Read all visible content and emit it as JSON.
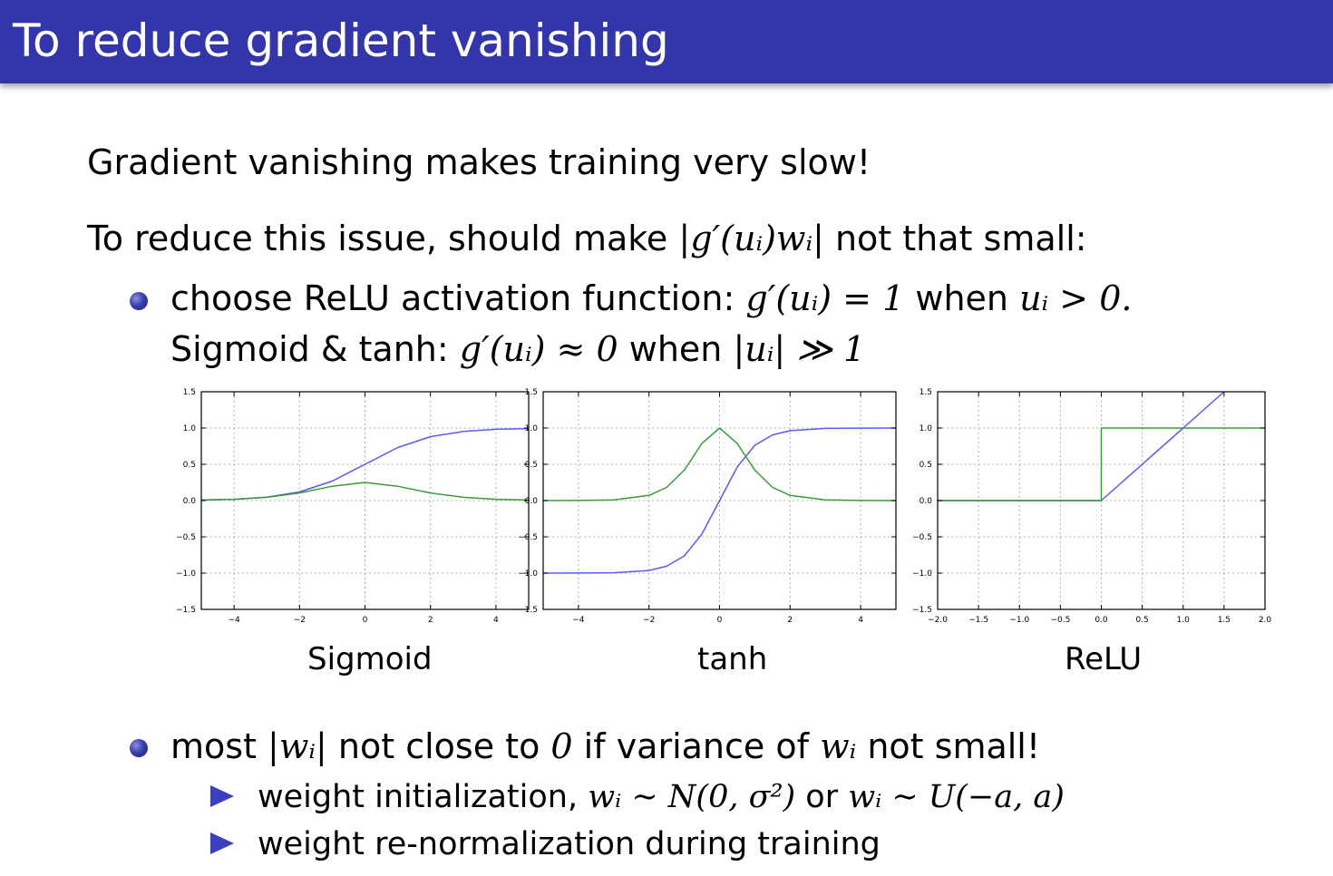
{
  "slide": {
    "title": "To reduce gradient vanishing",
    "line1": "Gradient vanishing makes training very slow!",
    "line2": {
      "prefix": "To reduce this issue, should make ",
      "math": "|g′(uᵢ)wᵢ|",
      "suffix": " not that small:"
    },
    "bullet1": {
      "part1": "choose ReLU activation function: ",
      "math1": "g′(uᵢ) = 1",
      "part2": " when ",
      "math2": "uᵢ > 0.",
      "line2_part1": "Sigmoid & tanh: ",
      "line2_math1": "g′(uᵢ) ≈ 0",
      "line2_part2": " when ",
      "line2_math2": "|uᵢ| ≫ 1"
    },
    "bullet2": {
      "part1": "most ",
      "math1": "|wᵢ|",
      "part2": " not close to ",
      "math2": "0",
      "part3": " if variance of ",
      "math3": "wᵢ",
      "part4": " not small!"
    },
    "sub1": {
      "part1": "weight initialization, ",
      "math1": "wᵢ ∼ N(0, σ²)",
      "part2": " or ",
      "math2": "wᵢ ∼ U(−a, a)"
    },
    "sub2": "weight re-normalization during training",
    "plot_labels": [
      "Sigmoid",
      "tanh",
      "ReLU"
    ]
  },
  "colors": {
    "accent": "#3236aa",
    "blue_series": "#5a5aff",
    "green_series": "#3c9a3c"
  },
  "chart_data": [
    {
      "type": "line",
      "title": "Sigmoid",
      "xlim": [
        -5,
        5
      ],
      "ylim": [
        -1.5,
        1.5
      ],
      "xticks": [
        -4,
        -2,
        0,
        2,
        4
      ],
      "xtick_labels": [
        "−4",
        "−2",
        "0",
        "2",
        "4"
      ],
      "yticks": [
        1.5,
        1.0,
        0.5,
        0.0,
        -0.5,
        -1.0,
        -1.5
      ],
      "ytick_labels": [
        "1.5",
        "1.0",
        "0.5",
        "0.0",
        "−0.5",
        "−1.0",
        "−1.5"
      ],
      "grid": true,
      "series": [
        {
          "color": "blue",
          "x": [
            -5,
            -4,
            -3,
            -2,
            -1,
            0,
            1,
            2,
            3,
            4,
            5
          ],
          "y": [
            0.007,
            0.018,
            0.047,
            0.119,
            0.269,
            0.5,
            0.731,
            0.881,
            0.953,
            0.982,
            0.993
          ]
        },
        {
          "color": "green",
          "x": [
            -5,
            -4,
            -3,
            -2,
            -1,
            0,
            1,
            2,
            3,
            4,
            5
          ],
          "y": [
            0.007,
            0.018,
            0.045,
            0.105,
            0.197,
            0.25,
            0.197,
            0.105,
            0.045,
            0.018,
            0.007
          ]
        }
      ]
    },
    {
      "type": "line",
      "title": "tanh",
      "xlim": [
        -5,
        5
      ],
      "ylim": [
        -1.5,
        1.5
      ],
      "xticks": [
        -4,
        -2,
        0,
        2,
        4
      ],
      "xtick_labels": [
        "−4",
        "−2",
        "0",
        "2",
        "4"
      ],
      "yticks": [
        1.5,
        1.0,
        0.5,
        0.0,
        -0.5,
        -1.0,
        -1.5
      ],
      "ytick_labels": [
        "1.5",
        "1.0",
        "0.5",
        "0.0",
        "−0.5",
        "−1.0",
        "−1.5"
      ],
      "grid": true,
      "series": [
        {
          "color": "blue",
          "x": [
            -5,
            -4,
            -3,
            -2,
            -1.5,
            -1,
            -0.5,
            0,
            0.5,
            1,
            1.5,
            2,
            3,
            4,
            5
          ],
          "y": [
            -1.0,
            -0.999,
            -0.995,
            -0.964,
            -0.905,
            -0.762,
            -0.462,
            0,
            0.462,
            0.762,
            0.905,
            0.964,
            0.995,
            0.999,
            1.0
          ]
        },
        {
          "color": "green",
          "x": [
            -5,
            -4,
            -3,
            -2,
            -1.5,
            -1,
            -0.5,
            0,
            0.5,
            1,
            1.5,
            2,
            3,
            4,
            5
          ],
          "y": [
            0.0,
            0.001,
            0.01,
            0.071,
            0.181,
            0.42,
            0.786,
            1.0,
            0.786,
            0.42,
            0.181,
            0.071,
            0.01,
            0.001,
            0.0
          ]
        }
      ]
    },
    {
      "type": "line",
      "title": "ReLU",
      "xlim": [
        -2.0,
        2.0
      ],
      "ylim": [
        -1.5,
        1.5
      ],
      "xticks": [
        -2.0,
        -1.5,
        -1.0,
        -0.5,
        0.0,
        0.5,
        1.0,
        1.5,
        2.0
      ],
      "xtick_labels": [
        "−2.0",
        "−1.5",
        "−1.0",
        "−0.5",
        "0.0",
        "0.5",
        "1.0",
        "1.5",
        "2.0"
      ],
      "yticks": [
        1.5,
        1.0,
        0.5,
        0.0,
        -0.5,
        -1.0,
        -1.5
      ],
      "ytick_labels": [
        "1.5",
        "1.0",
        "0.5",
        "0.0",
        "−0.5",
        "−1.0",
        "−1.5"
      ],
      "grid": true,
      "series": [
        {
          "color": "blue",
          "x": [
            -2.0,
            0.0,
            1.5
          ],
          "y": [
            0.0,
            0.0,
            1.5
          ]
        },
        {
          "color": "green",
          "x": [
            -2.0,
            0.0,
            0.0,
            2.0
          ],
          "y": [
            0.0,
            0.0,
            1.0,
            1.0
          ]
        }
      ]
    }
  ]
}
